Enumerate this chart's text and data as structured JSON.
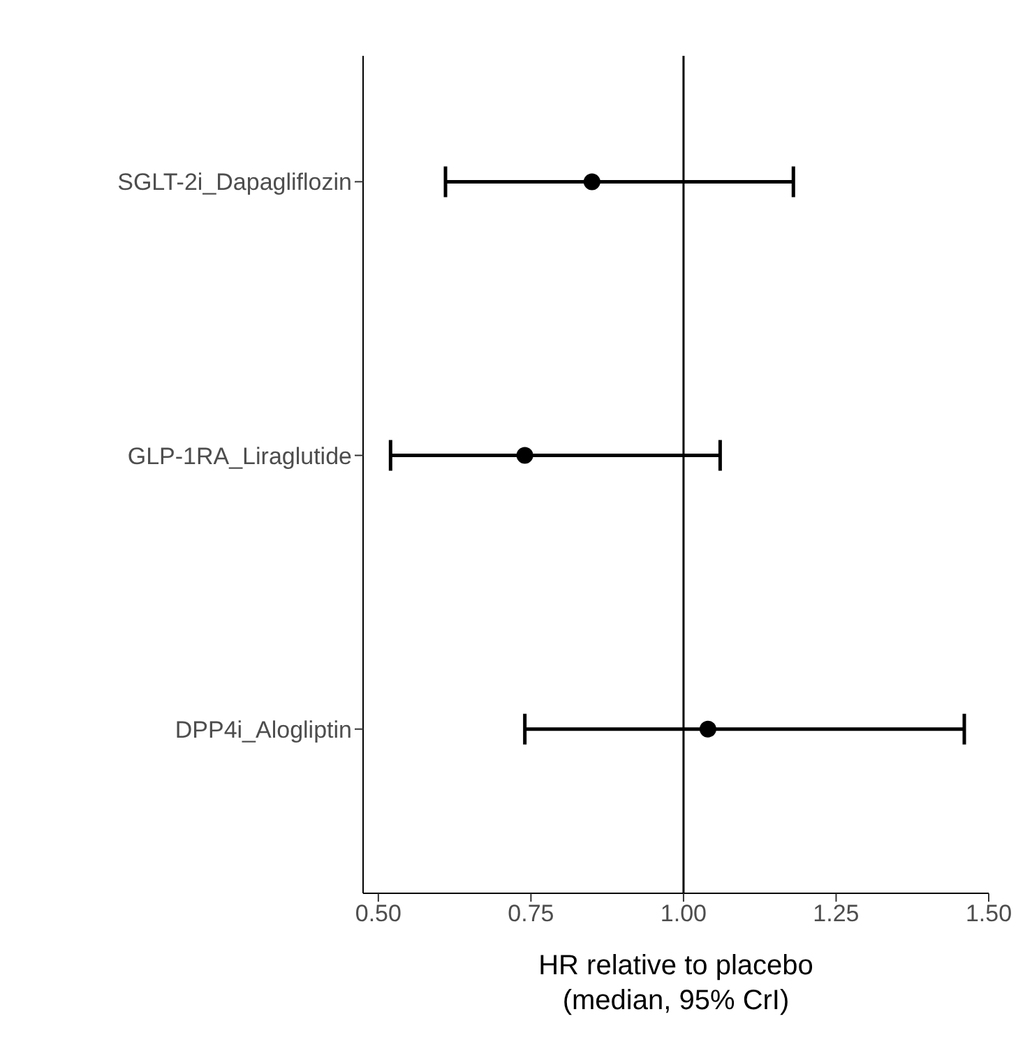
{
  "chart_data": {
    "type": "scatter",
    "orientation": "horizontal",
    "categories": [
      "SGLT-2i_Dapagliflozin",
      "GLP-1RA_Liraglutide",
      "DPP4i_Alogliptin"
    ],
    "series": [
      {
        "color": "#000000",
        "values": [
          0.85,
          0.74,
          1.04
        ],
        "errors": [
          [
            0.61,
            1.18
          ],
          [
            0.52,
            1.06
          ],
          [
            0.74,
            1.46
          ]
        ]
      }
    ],
    "xlabel": "HR relative to placebo\n(median, 95% CrI)",
    "xlim": [
      0.475,
      1.5
    ],
    "xticks": [
      {
        "value": 0.5,
        "label": "0.50"
      },
      {
        "value": 0.75,
        "label": "0.75"
      },
      {
        "value": 1,
        "label": "1.00"
      },
      {
        "value": 1.25,
        "label": "1.25"
      },
      {
        "value": 1.5,
        "label": "1.50"
      }
    ],
    "ref_lines": [
      {
        "axis": "x",
        "value": 1,
        "color": "#000000"
      }
    ],
    "marker": "circle"
  }
}
